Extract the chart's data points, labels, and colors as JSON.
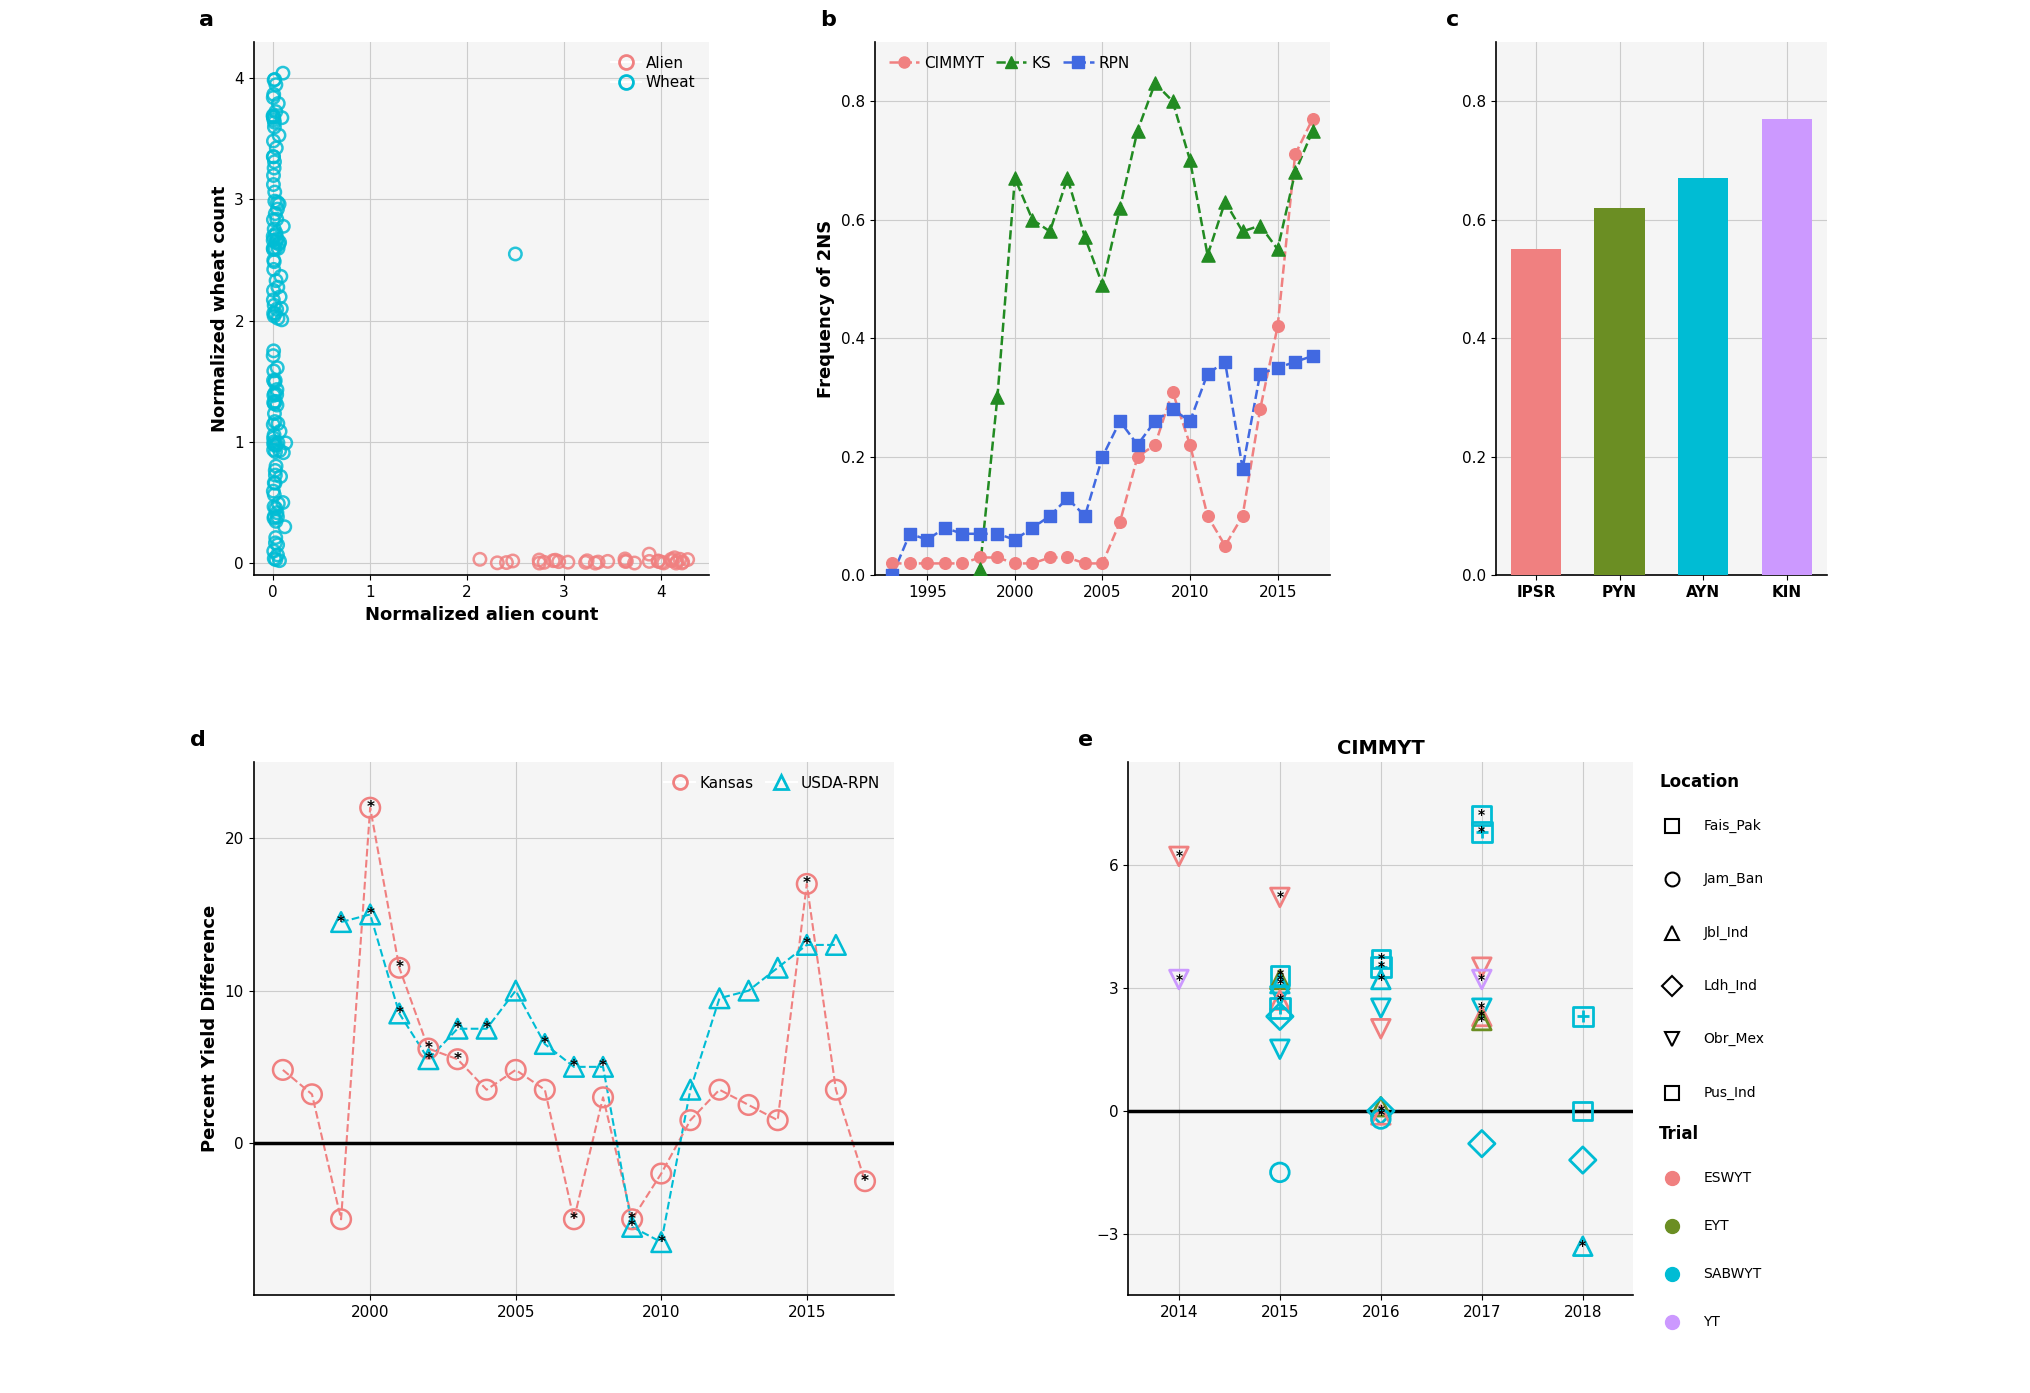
{
  "panel_a": {
    "wheat_x": [
      0,
      0,
      0,
      0,
      0,
      0,
      0,
      0,
      0,
      0,
      0,
      0,
      0,
      0,
      0,
      0,
      0,
      0,
      0,
      0,
      0,
      0,
      0,
      0,
      0,
      0,
      0,
      0,
      0,
      0,
      0.1,
      0.05,
      0.02,
      0.08,
      0.12,
      2.5,
      0.03,
      0.06,
      0.04
    ],
    "wheat_y": [
      4,
      3.9,
      3.8,
      3.7,
      3.6,
      3.5,
      3.4,
      3.3,
      3.2,
      3.1,
      3.0,
      2.9,
      2.8,
      2.7,
      2.6,
      2.5,
      2.4,
      2.3,
      2.2,
      2.1,
      2.0,
      1.9,
      1.8,
      1.7,
      1.6,
      1.5,
      1.4,
      1.3,
      1.2,
      1.1,
      1.0,
      0.9,
      0.8,
      0.7,
      0.6,
      2.6,
      0.5,
      0.4,
      0.3
    ],
    "alien_x": [
      2.2,
      2.3,
      2.4,
      2.5,
      2.6,
      2.7,
      2.8,
      2.9,
      3.0,
      3.1,
      3.2,
      3.3,
      3.4,
      3.5,
      3.6,
      3.7,
      3.8,
      3.9,
      4.0,
      4.1,
      4.2,
      2.15,
      2.25,
      2.35,
      2.45,
      2.55,
      2.65,
      2.75,
      2.85,
      2.95,
      3.05,
      3.15,
      3.25,
      3.35,
      3.45
    ],
    "alien_y": [
      0.0,
      0.0,
      0.0,
      0.0,
      0.0,
      0.0,
      0.0,
      0.0,
      0.0,
      0.0,
      0.0,
      0.0,
      0.0,
      0.0,
      0.0,
      0.0,
      0.0,
      0.0,
      0.0,
      0.0,
      0.0,
      0.02,
      0.02,
      0.02,
      0.02,
      0.02,
      0.02,
      0.02,
      0.02,
      0.02,
      0.02,
      0.02,
      0.02,
      0.02,
      0.02
    ],
    "wheat_color": "#00BCD4",
    "alien_color": "#F08080",
    "xlabel": "Normalized alien count",
    "ylabel": "Normalized wheat count",
    "xlim": [
      -0.2,
      4.5
    ],
    "ylim": [
      -0.1,
      4.3
    ],
    "xticks": [
      0,
      1,
      2,
      3,
      4
    ],
    "yticks": [
      0,
      1,
      2,
      3,
      4
    ]
  },
  "panel_b": {
    "cimmyt_x": [
      1993,
      1994,
      1995,
      1996,
      1997,
      1998,
      1999,
      2000,
      2001,
      2002,
      2003,
      2004,
      2005,
      2006,
      2007,
      2008,
      2009,
      2010,
      2011,
      2012,
      2013,
      2014,
      2015,
      2016,
      2017
    ],
    "cimmyt_y": [
      0.02,
      0.02,
      0.02,
      0.02,
      0.02,
      0.03,
      0.03,
      0.02,
      0.02,
      0.03,
      0.03,
      0.02,
      0.02,
      0.09,
      0.2,
      0.22,
      0.31,
      0.22,
      0.1,
      0.05,
      0.1,
      0.28,
      0.42,
      0.71,
      0.77
    ],
    "ks_x": [
      1998,
      1999,
      2000,
      2001,
      2002,
      2003,
      2004,
      2005,
      2006,
      2007,
      2008,
      2009,
      2010,
      2011,
      2012,
      2013,
      2014,
      2015,
      2016,
      2017
    ],
    "ks_y": [
      0.01,
      0.3,
      0.67,
      0.6,
      0.58,
      0.67,
      0.57,
      0.49,
      0.62,
      0.75,
      0.83,
      0.8,
      0.7,
      0.54,
      0.63,
      0.58,
      0.59,
      0.55,
      0.68,
      0.75
    ],
    "rpn_x": [
      1993,
      1994,
      1995,
      1996,
      1997,
      1998,
      1999,
      2000,
      2001,
      2002,
      2003,
      2004,
      2005,
      2006,
      2007,
      2008,
      2009,
      2010,
      2011,
      2012,
      2013,
      2014,
      2015,
      2016,
      2017
    ],
    "rpn_y": [
      0.0,
      0.07,
      0.06,
      0.08,
      0.07,
      0.07,
      0.07,
      0.06,
      0.08,
      0.1,
      0.13,
      0.1,
      0.2,
      0.26,
      0.22,
      0.26,
      0.28,
      0.26,
      0.34,
      0.36,
      0.18,
      0.34,
      0.35,
      0.36,
      0.37
    ],
    "cimmyt_color": "#F08080",
    "ks_color": "#228B22",
    "rpn_color": "#4169E1",
    "ylabel": "Frequency of 2NS",
    "xlim": [
      1992,
      2018
    ],
    "ylim": [
      0.0,
      0.9
    ],
    "xticks": [
      1995,
      2000,
      2005,
      2010,
      2015
    ],
    "yticks": [
      0.0,
      0.2,
      0.4,
      0.6,
      0.8
    ]
  },
  "panel_c": {
    "categories": [
      "IPSR",
      "PYN",
      "AYN",
      "KIN"
    ],
    "values": [
      0.55,
      0.62,
      0.67,
      0.77
    ],
    "colors": [
      "#F08080",
      "#6B8E23",
      "#00BCD4",
      "#CC99FF"
    ],
    "ylim": [
      0.0,
      0.9
    ],
    "yticks": [
      0.0,
      0.2,
      0.4,
      0.6,
      0.8
    ]
  },
  "panel_d": {
    "kansas_x": [
      1997,
      1998,
      1999,
      2000,
      2001,
      2002,
      2003,
      2004,
      2005,
      2006,
      2007,
      2008,
      2009,
      2010,
      2011,
      2012,
      2013,
      2014,
      2015,
      2016,
      2017
    ],
    "kansas_y": [
      4.8,
      3.2,
      -5.0,
      22.0,
      11.5,
      6.2,
      5.5,
      3.5,
      4.8,
      3.5,
      -5.0,
      3.0,
      -5.0,
      -2.0,
      1.5,
      3.5,
      2.5,
      1.5,
      17.0,
      3.5,
      -2.5
    ],
    "kansas_sig": [
      false,
      false,
      false,
      true,
      true,
      true,
      true,
      false,
      false,
      false,
      true,
      false,
      true,
      false,
      false,
      false,
      false,
      false,
      true,
      false,
      true
    ],
    "rpn_x": [
      1999,
      2000,
      2001,
      2002,
      2003,
      2004,
      2005,
      2006,
      2007,
      2008,
      2009,
      2010,
      2011,
      2012,
      2013,
      2014,
      2015,
      2016
    ],
    "rpn_y": [
      14.5,
      15.0,
      8.5,
      5.5,
      7.5,
      7.5,
      10.0,
      6.5,
      5.0,
      5.0,
      -5.5,
      -6.5,
      3.5,
      9.5,
      10.0,
      11.5,
      13.0,
      13.0
    ],
    "rpn_sig": [
      true,
      true,
      true,
      true,
      true,
      true,
      false,
      true,
      true,
      true,
      true,
      true,
      false,
      false,
      false,
      false,
      true,
      false
    ],
    "kansas_color": "#F08080",
    "rpn_color": "#00BCD4",
    "ylabel": "Percent Yield Difference",
    "xlim": [
      1996,
      2018
    ],
    "ylim": [
      -10,
      25
    ],
    "yticks": [
      0,
      10,
      20
    ],
    "xticks": [
      2000,
      2005,
      2010,
      2015
    ]
  },
  "panel_e": {
    "title": "CIMMYT",
    "data": [
      {
        "year": 2014,
        "value": 6.2,
        "trial": "ESWYT",
        "location": "Obr_Mex",
        "sig": true
      },
      {
        "year": 2014,
        "value": 3.2,
        "trial": "YT",
        "location": "Obr_Mex",
        "sig": true
      },
      {
        "year": 2015,
        "value": 5.2,
        "trial": "ESWYT",
        "location": "Obr_Mex",
        "sig": true
      },
      {
        "year": 2015,
        "value": 3.3,
        "trial": "SABWYT",
        "location": "Fais_Pak",
        "sig": true
      },
      {
        "year": 2015,
        "value": 3.2,
        "trial": "EYT",
        "location": "Jbl_Ind",
        "sig": true
      },
      {
        "year": 2015,
        "value": 3.1,
        "trial": "SABWYT",
        "location": "Jbl_Ind",
        "sig": true
      },
      {
        "year": 2015,
        "value": 2.8,
        "trial": "SABWYT",
        "location": "Obr_Mex",
        "sig": false
      },
      {
        "year": 2015,
        "value": 2.7,
        "trial": "ESWYT",
        "location": "Jbl_Ind",
        "sig": true
      },
      {
        "year": 2015,
        "value": 2.5,
        "trial": "SABWYT",
        "location": "Pus_Ind",
        "sig": false
      },
      {
        "year": 2015,
        "value": 2.3,
        "trial": "SABWYT",
        "location": "Ldh_Ind",
        "sig": false
      },
      {
        "year": 2015,
        "value": 1.5,
        "trial": "SABWYT",
        "location": "Obr_Mex",
        "sig": false
      },
      {
        "year": 2015,
        "value": -1.5,
        "trial": "SABWYT",
        "location": "Jam_Ban",
        "sig": false
      },
      {
        "year": 2016,
        "value": 3.7,
        "trial": "SABWYT",
        "location": "Fais_Pak",
        "sig": true
      },
      {
        "year": 2016,
        "value": 3.5,
        "trial": "SABWYT",
        "location": "Pus_Ind",
        "sig": true
      },
      {
        "year": 2016,
        "value": 3.2,
        "trial": "SABWYT",
        "location": "Jbl_Ind",
        "sig": true
      },
      {
        "year": 2016,
        "value": 2.5,
        "trial": "SABWYT",
        "location": "Obr_Mex",
        "sig": false
      },
      {
        "year": 2016,
        "value": 2.0,
        "trial": "ESWYT",
        "location": "Obr_Mex",
        "sig": false
      },
      {
        "year": 2016,
        "value": 0.1,
        "trial": "EYT",
        "location": "Jbl_Ind",
        "sig": false
      },
      {
        "year": 2016,
        "value": 0.0,
        "trial": "SABWYT",
        "location": "Ldh_Ind",
        "sig": true
      },
      {
        "year": 2016,
        "value": -0.1,
        "trial": "ESWYT",
        "location": "Jbl_Ind",
        "sig": true
      },
      {
        "year": 2016,
        "value": -0.2,
        "trial": "SABWYT",
        "location": "Jam_Ban",
        "sig": false
      },
      {
        "year": 2017,
        "value": 7.2,
        "trial": "SABWYT",
        "location": "Fais_Pak",
        "sig": true
      },
      {
        "year": 2017,
        "value": 6.8,
        "trial": "SABWYT",
        "location": "Pus_Ind",
        "sig": true
      },
      {
        "year": 2017,
        "value": 3.5,
        "trial": "ESWYT",
        "location": "Obr_Mex",
        "sig": false
      },
      {
        "year": 2017,
        "value": 3.2,
        "trial": "YT",
        "location": "Obr_Mex",
        "sig": true
      },
      {
        "year": 2017,
        "value": 2.5,
        "trial": "SABWYT",
        "location": "Obr_Mex",
        "sig": true
      },
      {
        "year": 2017,
        "value": 2.3,
        "trial": "ESWYT",
        "location": "Jbl_Ind",
        "sig": true
      },
      {
        "year": 2017,
        "value": 2.2,
        "trial": "EYT",
        "location": "Jbl_Ind",
        "sig": true
      },
      {
        "year": 2017,
        "value": -0.8,
        "trial": "SABWYT",
        "location": "Ldh_Ind",
        "sig": false
      },
      {
        "year": 2018,
        "value": 2.3,
        "trial": "SABWYT",
        "location": "Pus_Ind",
        "sig": false
      },
      {
        "year": 2018,
        "value": 0.0,
        "trial": "SABWYT",
        "location": "Fais_Pak",
        "sig": false
      },
      {
        "year": 2018,
        "value": -1.2,
        "trial": "SABWYT",
        "location": "Ldh_Ind",
        "sig": false
      },
      {
        "year": 2018,
        "value": -3.3,
        "trial": "SABWYT",
        "location": "Jbl_Ind",
        "sig": true
      }
    ],
    "trial_colors": {
      "ESWYT": "#F08080",
      "EYT": "#6B8E23",
      "SABWYT": "#00BCD4",
      "YT": "#CC99FF"
    },
    "location_markers": {
      "Fais_Pak": "s",
      "Jam_Ban": "o",
      "Jbl_Ind": "^",
      "Ldh_Ind": "D",
      "Obr_Mex": "v",
      "Pus_Ind": "P"
    },
    "xlim": [
      2013.5,
      2018.5
    ],
    "ylim": [
      -4.5,
      8.5
    ],
    "xticks": [
      2014,
      2015,
      2016,
      2017,
      2018
    ],
    "yticks": [
      -3,
      0,
      3,
      6
    ]
  },
  "bg_color": "#f5f5f5",
  "grid_color": "#cccccc"
}
